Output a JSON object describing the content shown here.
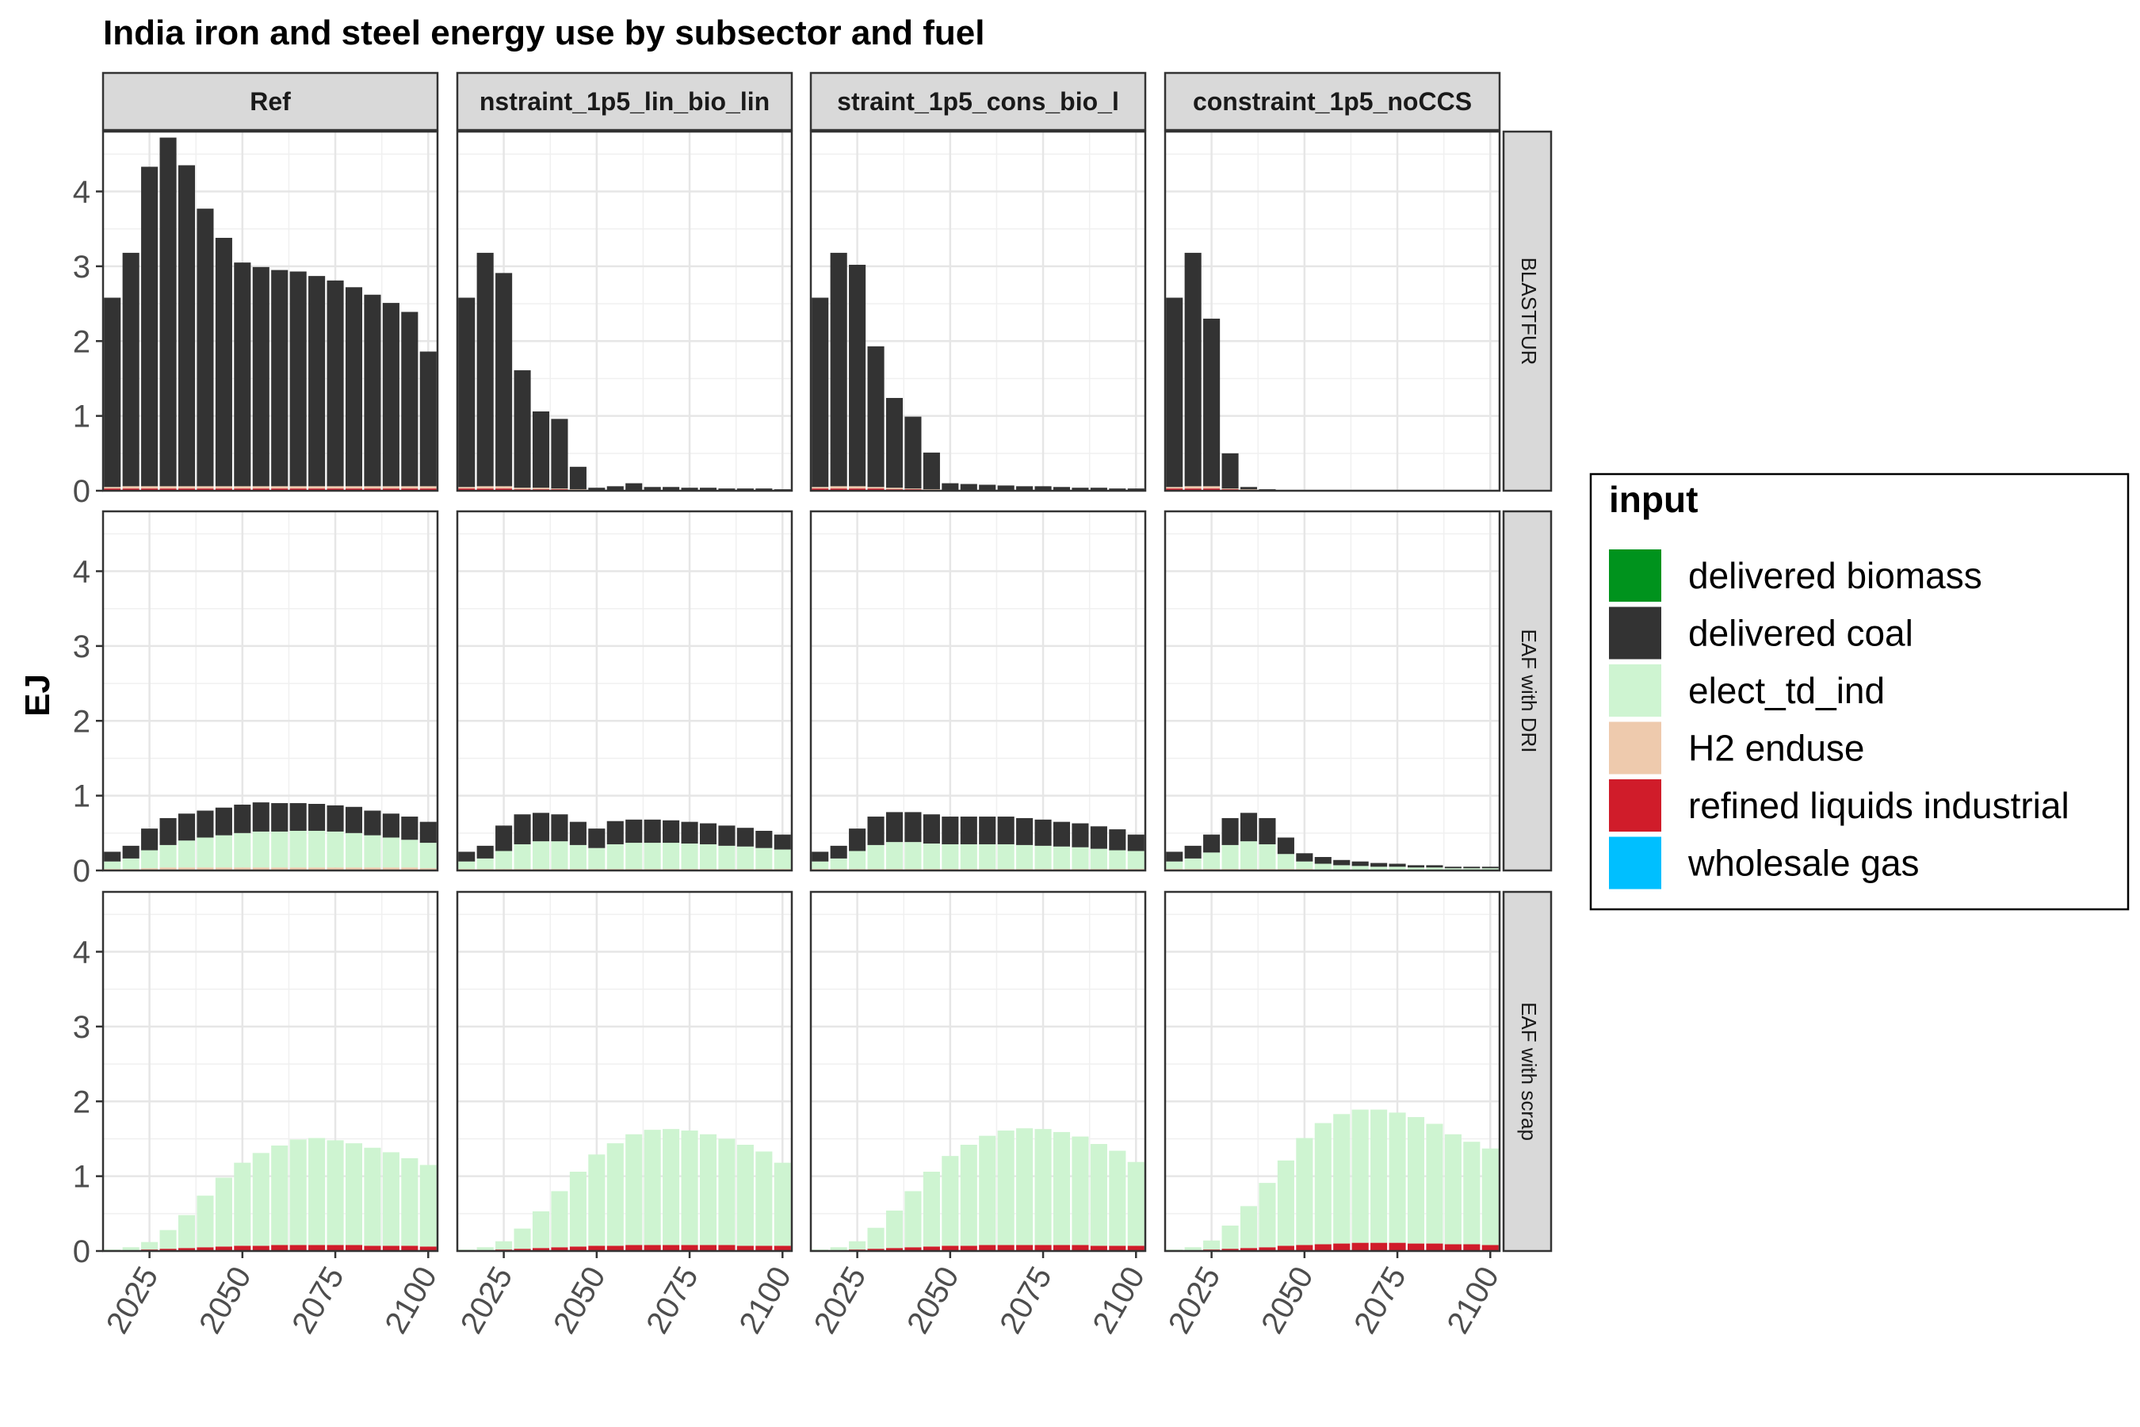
{
  "chart_data": {
    "type": "bar",
    "stacked": true,
    "title": "India iron and steel energy use by subsector and fuel",
    "ylabel": "EJ",
    "xlabel": "",
    "ylim": [
      0,
      4.8
    ],
    "yticks": [
      "0",
      "1",
      "2",
      "3",
      "4"
    ],
    "xticks": [
      "2025",
      "2050",
      "2075",
      "2100"
    ],
    "x": [
      2015,
      2020,
      2025,
      2030,
      2035,
      2040,
      2045,
      2050,
      2055,
      2060,
      2065,
      2070,
      2075,
      2080,
      2085,
      2090,
      2095,
      2100
    ],
    "legend": {
      "title": "input",
      "position": "right",
      "items": [
        {
          "name": "delivered biomass",
          "color": "#00931d"
        },
        {
          "name": "delivered coal",
          "color": "#333333"
        },
        {
          "name": "elect_td_ind",
          "color": "#cef4d1"
        },
        {
          "name": "H2 enduse",
          "color": "#eecaad"
        },
        {
          "name": "refined liquids industrial",
          "color": "#d01c2a"
        },
        {
          "name": "wholesale gas",
          "color": "#00bfff"
        }
      ]
    },
    "columns": [
      "Ref",
      "nstraint_1p5_lin_bio_lin",
      "straint_1p5_cons_bio_l",
      "constraint_1p5_noCCS"
    ],
    "rows": [
      "BLASTFUR",
      "EAF with DRI",
      "EAF with scrap"
    ],
    "panels": [
      {
        "column": "Ref",
        "row": "BLASTFUR",
        "series": [
          {
            "name": "refined liquids industrial",
            "values": [
              0.03,
              0.03,
              0.03,
              0.03,
              0.03,
              0.03,
              0.03,
              0.03,
              0.03,
              0.03,
              0.03,
              0.03,
              0.03,
              0.03,
              0.03,
              0.03,
              0.03,
              0.03
            ]
          },
          {
            "name": "H2 enduse",
            "values": [
              0.02,
              0.03,
              0.03,
              0.03,
              0.03,
              0.03,
              0.03,
              0.03,
              0.03,
              0.03,
              0.03,
              0.03,
              0.03,
              0.03,
              0.03,
              0.03,
              0.03,
              0.03
            ]
          },
          {
            "name": "delivered coal",
            "values": [
              2.53,
              3.12,
              4.27,
              4.66,
              4.29,
              3.71,
              3.32,
              2.99,
              2.93,
              2.89,
              2.87,
              2.81,
              2.75,
              2.66,
              2.56,
              2.45,
              2.33,
              1.8
            ]
          }
        ]
      },
      {
        "column": "nstraint_1p5_lin_bio_lin",
        "row": "BLASTFUR",
        "series": [
          {
            "name": "refined liquids industrial",
            "values": [
              0.03,
              0.03,
              0.03,
              0.02,
              0.02,
              0.02,
              0.01,
              0.01,
              0.01,
              0.01,
              0.01,
              0.01,
              0.01,
              0.01,
              0.01,
              0.01,
              0.01,
              0.01
            ]
          },
          {
            "name": "H2 enduse",
            "values": [
              0.02,
              0.03,
              0.03,
              0.02,
              0.02,
              0.01,
              0.01,
              0,
              0,
              0,
              0,
              0,
              0,
              0,
              0,
              0,
              0,
              0
            ]
          },
          {
            "name": "delivered coal",
            "values": [
              2.53,
              3.12,
              2.85,
              1.57,
              1.02,
              0.93,
              0.3,
              0.03,
              0.05,
              0.09,
              0.04,
              0.04,
              0.03,
              0.03,
              0.02,
              0.02,
              0.02,
              0.01
            ]
          }
        ]
      },
      {
        "column": "straint_1p5_cons_bio_l",
        "row": "BLASTFUR",
        "series": [
          {
            "name": "refined liquids industrial",
            "values": [
              0.03,
              0.03,
              0.03,
              0.03,
              0.02,
              0.02,
              0.01,
              0.01,
              0.01,
              0.01,
              0.01,
              0.01,
              0.01,
              0.01,
              0.01,
              0.01,
              0.01,
              0.01
            ]
          },
          {
            "name": "H2 enduse",
            "values": [
              0.02,
              0.03,
              0.03,
              0.02,
              0.02,
              0.01,
              0.01,
              0,
              0,
              0,
              0,
              0,
              0,
              0,
              0,
              0,
              0,
              0
            ]
          },
          {
            "name": "delivered coal",
            "values": [
              2.53,
              3.12,
              2.96,
              1.88,
              1.2,
              0.96,
              0.49,
              0.09,
              0.08,
              0.07,
              0.06,
              0.05,
              0.05,
              0.04,
              0.03,
              0.03,
              0.02,
              0.02
            ]
          }
        ]
      },
      {
        "column": "constraint_1p5_noCCS",
        "row": "BLASTFUR",
        "series": [
          {
            "name": "refined liquids industrial",
            "values": [
              0.03,
              0.03,
              0.03,
              0.02,
              0.01,
              0.01,
              0,
              0,
              0,
              0,
              0,
              0,
              0,
              0,
              0,
              0,
              0,
              0
            ]
          },
          {
            "name": "H2 enduse",
            "values": [
              0.02,
              0.03,
              0.03,
              0.01,
              0.01,
              0,
              0,
              0,
              0,
              0,
              0,
              0,
              0,
              0,
              0,
              0,
              0,
              0
            ]
          },
          {
            "name": "delivered coal",
            "values": [
              2.53,
              3.12,
              2.24,
              0.47,
              0.03,
              0.01,
              0.01,
              0,
              0,
              0,
              0,
              0,
              0,
              0,
              0,
              0,
              0,
              0
            ]
          }
        ]
      },
      {
        "column": "Ref",
        "row": "EAF with DRI",
        "series": [
          {
            "name": "refined liquids industrial",
            "values": [
              0.01,
              0.01,
              0.01,
              0.01,
              0.01,
              0.01,
              0.01,
              0.01,
              0.01,
              0.01,
              0.01,
              0.01,
              0.01,
              0.01,
              0.01,
              0.01,
              0.01,
              0.01
            ]
          },
          {
            "name": "H2 enduse",
            "values": [
              0.01,
              0.01,
              0.02,
              0.03,
              0.03,
              0.03,
              0.03,
              0.03,
              0.03,
              0.03,
              0.03,
              0.03,
              0.03,
              0.03,
              0.03,
              0.03,
              0.03,
              0.02
            ]
          },
          {
            "name": "elect_td_ind",
            "values": [
              0.1,
              0.14,
              0.24,
              0.3,
              0.36,
              0.4,
              0.43,
              0.46,
              0.48,
              0.48,
              0.49,
              0.49,
              0.48,
              0.46,
              0.43,
              0.4,
              0.37,
              0.34
            ]
          },
          {
            "name": "delivered coal",
            "values": [
              0.13,
              0.17,
              0.29,
              0.36,
              0.36,
              0.36,
              0.37,
              0.38,
              0.39,
              0.38,
              0.37,
              0.36,
              0.35,
              0.35,
              0.33,
              0.32,
              0.31,
              0.28
            ]
          }
        ]
      },
      {
        "column": "nstraint_1p5_lin_bio_lin",
        "row": "EAF with DRI",
        "series": [
          {
            "name": "refined liquids industrial",
            "values": [
              0.01,
              0.01,
              0.01,
              0.01,
              0.01,
              0.01,
              0.01,
              0.01,
              0.01,
              0.01,
              0.01,
              0.01,
              0.01,
              0.01,
              0.01,
              0.01,
              0.01,
              0.01
            ]
          },
          {
            "name": "H2 enduse",
            "values": [
              0.01,
              0.01,
              0.01,
              0.01,
              0.01,
              0.01,
              0.01,
              0.01,
              0.01,
              0.01,
              0.01,
              0.01,
              0.01,
              0.01,
              0.01,
              0.01,
              0.01,
              0.01
            ]
          },
          {
            "name": "elect_td_ind",
            "values": [
              0.1,
              0.14,
              0.24,
              0.33,
              0.37,
              0.37,
              0.32,
              0.28,
              0.33,
              0.35,
              0.35,
              0.35,
              0.34,
              0.33,
              0.31,
              0.3,
              0.28,
              0.26
            ]
          },
          {
            "name": "delivered coal",
            "values": [
              0.13,
              0.17,
              0.34,
              0.4,
              0.38,
              0.36,
              0.31,
              0.26,
              0.31,
              0.31,
              0.31,
              0.3,
              0.29,
              0.28,
              0.27,
              0.25,
              0.23,
              0.2
            ]
          }
        ]
      },
      {
        "column": "straint_1p5_cons_bio_l",
        "row": "EAF with DRI",
        "series": [
          {
            "name": "refined liquids industrial",
            "values": [
              0.01,
              0.01,
              0.01,
              0.01,
              0.01,
              0.01,
              0.01,
              0.01,
              0.01,
              0.01,
              0.01,
              0.01,
              0.01,
              0.01,
              0.01,
              0.01,
              0.01,
              0.01
            ]
          },
          {
            "name": "H2 enduse",
            "values": [
              0.01,
              0.01,
              0.01,
              0.01,
              0.01,
              0.01,
              0.01,
              0.01,
              0.01,
              0.01,
              0.01,
              0.01,
              0.01,
              0.01,
              0.01,
              0.01,
              0.01,
              0.01
            ]
          },
          {
            "name": "elect_td_ind",
            "values": [
              0.1,
              0.14,
              0.24,
              0.32,
              0.36,
              0.36,
              0.34,
              0.33,
              0.33,
              0.33,
              0.33,
              0.32,
              0.31,
              0.3,
              0.29,
              0.27,
              0.25,
              0.24
            ]
          },
          {
            "name": "delivered coal",
            "values": [
              0.13,
              0.17,
              0.3,
              0.38,
              0.4,
              0.4,
              0.39,
              0.37,
              0.37,
              0.37,
              0.37,
              0.36,
              0.35,
              0.33,
              0.32,
              0.3,
              0.28,
              0.22
            ]
          }
        ]
      },
      {
        "column": "constraint_1p5_noCCS",
        "row": "EAF with DRI",
        "series": [
          {
            "name": "refined liquids industrial",
            "values": [
              0.01,
              0.01,
              0.01,
              0.01,
              0.01,
              0.01,
              0.01,
              0.01,
              0.01,
              0,
              0,
              0,
              0,
              0,
              0,
              0,
              0,
              0
            ]
          },
          {
            "name": "H2 enduse",
            "values": [
              0.01,
              0.01,
              0.01,
              0.01,
              0.01,
              0.01,
              0.01,
              0.01,
              0,
              0,
              0,
              0,
              0,
              0,
              0,
              0,
              0,
              0
            ]
          },
          {
            "name": "elect_td_ind",
            "values": [
              0.1,
              0.14,
              0.22,
              0.32,
              0.37,
              0.33,
              0.2,
              0.1,
              0.08,
              0.07,
              0.06,
              0.05,
              0.05,
              0.04,
              0.04,
              0.03,
              0.03,
              0.03
            ]
          },
          {
            "name": "delivered coal",
            "values": [
              0.13,
              0.17,
              0.24,
              0.36,
              0.38,
              0.35,
              0.22,
              0.11,
              0.09,
              0.07,
              0.06,
              0.05,
              0.04,
              0.03,
              0.03,
              0.02,
              0.02,
              0.02
            ]
          }
        ]
      },
      {
        "column": "Ref",
        "row": "EAF with scrap",
        "series": [
          {
            "name": "refined liquids industrial",
            "values": [
              0.01,
              0.01,
              0.02,
              0.03,
              0.04,
              0.05,
              0.06,
              0.07,
              0.07,
              0.08,
              0.08,
              0.08,
              0.08,
              0.08,
              0.07,
              0.07,
              0.07,
              0.06
            ]
          },
          {
            "name": "elect_td_ind",
            "values": [
              0.01,
              0.04,
              0.1,
              0.25,
              0.44,
              0.69,
              0.92,
              1.11,
              1.24,
              1.33,
              1.41,
              1.43,
              1.4,
              1.36,
              1.31,
              1.25,
              1.17,
              1.09
            ]
          }
        ]
      },
      {
        "column": "nstraint_1p5_lin_bio_lin",
        "row": "EAF with scrap",
        "series": [
          {
            "name": "refined liquids industrial",
            "values": [
              0.01,
              0.01,
              0.02,
              0.03,
              0.04,
              0.05,
              0.06,
              0.07,
              0.07,
              0.08,
              0.08,
              0.08,
              0.08,
              0.08,
              0.08,
              0.07,
              0.07,
              0.07
            ]
          },
          {
            "name": "elect_td_ind",
            "values": [
              0.01,
              0.04,
              0.11,
              0.27,
              0.49,
              0.75,
              1.0,
              1.22,
              1.37,
              1.48,
              1.54,
              1.55,
              1.53,
              1.48,
              1.42,
              1.35,
              1.26,
              1.11
            ]
          }
        ]
      },
      {
        "column": "straint_1p5_cons_bio_l",
        "row": "EAF with scrap",
        "series": [
          {
            "name": "refined liquids industrial",
            "values": [
              0.01,
              0.01,
              0.02,
              0.03,
              0.04,
              0.05,
              0.06,
              0.07,
              0.07,
              0.08,
              0.08,
              0.08,
              0.08,
              0.08,
              0.08,
              0.07,
              0.07,
              0.07
            ]
          },
          {
            "name": "elect_td_ind",
            "values": [
              0.01,
              0.04,
              0.11,
              0.28,
              0.5,
              0.75,
              1.0,
              1.2,
              1.35,
              1.46,
              1.53,
              1.56,
              1.55,
              1.51,
              1.45,
              1.36,
              1.27,
              1.12
            ]
          }
        ]
      },
      {
        "column": "constraint_1p5_noCCS",
        "row": "EAF with scrap",
        "series": [
          {
            "name": "refined liquids industrial",
            "values": [
              0.01,
              0.01,
              0.02,
              0.03,
              0.04,
              0.05,
              0.07,
              0.08,
              0.09,
              0.1,
              0.11,
              0.11,
              0.11,
              0.1,
              0.1,
              0.09,
              0.09,
              0.08
            ]
          },
          {
            "name": "elect_td_ind",
            "values": [
              0.01,
              0.04,
              0.12,
              0.31,
              0.56,
              0.86,
              1.14,
              1.43,
              1.62,
              1.73,
              1.78,
              1.78,
              1.74,
              1.69,
              1.6,
              1.47,
              1.37,
              1.29
            ]
          }
        ]
      }
    ]
  }
}
